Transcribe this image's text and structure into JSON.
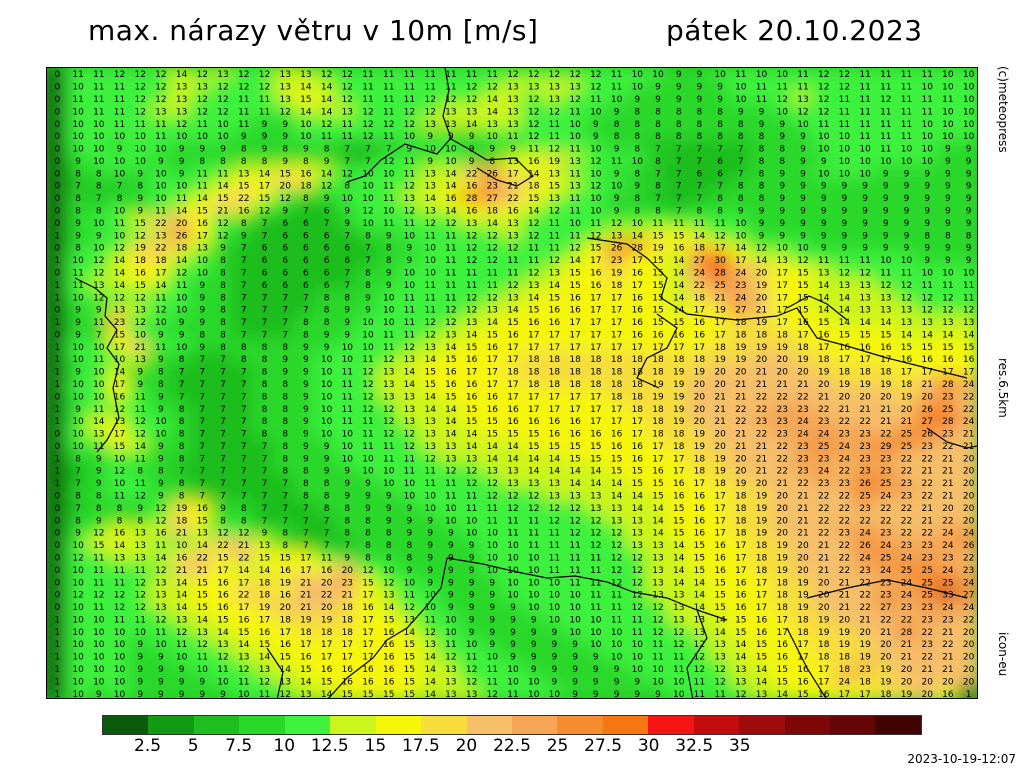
{
  "header": {
    "title": "max. nárazy větru v 10m [m/s]",
    "date": "pátek 20.10.2023"
  },
  "side_labels": {
    "copyright": "(c)meteopress",
    "resolution": "res.6.5km",
    "model": "icon-eu"
  },
  "timestamp": "2023-10-19-12:07",
  "legend": {
    "colors": [
      "#0c5a0c",
      "#139a13",
      "#1fbd1f",
      "#2ad82a",
      "#3ef23e",
      "#ccf51e",
      "#f6f60a",
      "#f7dd3d",
      "#f6bf6a",
      "#f4a655",
      "#f58c30",
      "#f67614",
      "#f51515",
      "#c10d0d",
      "#9d0b0b",
      "#7e0808",
      "#640606",
      "#420303"
    ],
    "labels": [
      "2.5",
      "5",
      "7.5",
      "10",
      "12.5",
      "15",
      "17.5",
      "20",
      "22.5",
      "25",
      "27.5",
      "30",
      "32.5",
      "35"
    ]
  },
  "map": {
    "rows": [
      "0 11 11 12 12 12 14 12 13 12 12 13 13 12 12 11 11 11 11 11 11 11 12 12 12 12 12 11 10 10 9 9 10 11 10 10 11 12 12 11 11 11 11 10 10",
      "0 10 11 11 12 12 13 13 12 12 12 13 14 14 12 11 11 11 11 11 12 12 13 13 13 13 12 11 10 9 9 9 9 10 11 11 11 12 12 11 11 11 10 10 10",
      "0 11 11 11 12 12 13 12 12 11 11 13 15 14 12 11 11 11 12 12 12 14 13 12 13 12 11 10 9 9 9 9 9 10 11 12 13 12 11 11 12 11 11 11 10",
      "0 10 11 11 12 13 13 12 12 11 11 12 14 14 13 12 11 12 12 13 13 14 13 12 12 11 10 9 8 8 8 8 8 9 9 10 12 12 11 11 11 11 11 10 10",
      "0 10 10 11 11 11 12 11 10 11 9 9 10 12 11 12 12 12 13 13 14 13 13 12 11 10 9 8 8 8 8 8 8 8 9 9 10 11 11 11 11 11 10 10 10",
      "0 10 10 10 10 11 10 10 10 9 9 9 10 11 11 12 11 10 9 9 9 10 11 12 11 10 9 8 8 8 8 8 8 8 8 9 9 10 10 11 11 11 10 10 10",
      "0 10 10 9 10 10 9 9 9 8 9 8 9 8 7 7 7 9 10 10 9 9 9 11 12 11 10 9 8 7 7 7 7 7 8 8 9 10 10 10 11 10 10 9 9",
      "0 9 10 10 10 9 9 8 8 8 8 9 8 9 7 7 12 11 9 10 9 8 13 16 19 13 12 11 10 8 7 7 6 7 8 8 9 9 10 10 10 10 10 9 9",
      "0 8 8 10 9 10 9 11 11 13 14 15 16 14 12 10 10 11 13 14 22 26 17 14 13 11 10 9 8 7 7 6 6 7 8 9 9 10 10 10 9 9 9 9 9",
      "0 7 8 7 8 10 10 11 14 15 17 20 18 12 8 10 11 12 13 14 16 23 21 18 15 13 12 10 9 8 7 7 7 8 8 9 9 9 9 9 9 9 9 9 9",
      "0 8 7 8 9 10 11 14 15 22 15 12 8 9 10 10 11 13 14 16 28 27 22 15 13 11 10 9 8 7 7 7 8 8 8 9 9 9 9 9 9 9 9 9 9",
      "0 8 8 10 9 11 14 15 21 16 12 9 7 6 9 12 10 12 13 14 16 18 16 14 12 11 10 9 8 8 7 8 8 9 9 9 9 9 9 9 9 9 9 9 9",
      "0 9 10 11 15 22 20 16 12 8 7 6 6 7 9 10 11 11 12 12 13 14 13 12 11 10 11 12 10 11 11 11 11 10 9 9 9 9 9 9 9 9 9 9 9",
      "1 9 9 10 12 13 26 17 12 9 7 6 6 6 7 8 9 10 11 11 12 12 13 12 11 11 12 13 14 15 15 14 12 10 9 9 9 9 9 9 9 9 8 8 8",
      "0 8 10 12 19 22 18 13 9 7 6 6 6 6 6 7 8 9 10 11 12 12 12 11 11 12 15 26 28 19 16 18 17 14 12 10 10 9 9 9 9 9 9 9 9",
      "1 10 12 14 18 18 14 10 8 7 6 6 6 6 6 7 8 9 10 11 12 12 11 11 12 14 17 23 17 15 14 27 30 17 14 13 12 11 11 11 10 10 9 9 9",
      "0 11 12 14 16 17 12 10 8 7 6 6 6 6 7 8 9 10 10 11 11 11 11 12 13 15 16 19 16 15 14 24 28 24 20 17 15 13 12 12 11 11 10 10 10",
      "1 11 13 14 15 14 11 9 8 7 6 6 6 6 7 8 9 10 11 11 11 11 12 13 14 15 16 18 17 15 14 22 25 23 19 17 15 14 13 13 12 12 11 11 11",
      "1 10 12 12 12 11 10 9 8 7 7 7 7 8 8 9 10 11 11 11 12 12 13 14 15 16 17 17 16 15 14 18 21 24 20 17 15 14 14 13 13 12 12 12 11",
      "0 9 9 13 13 12 10 9 8 7 7 7 7 8 9 9 10 11 11 12 12 13 14 15 16 16 17 17 16 15 14 17 19 27 21 17 15 14 14 13 13 13 12 12 12",
      "1 9 11 23 12 10 9 9 8 7 7 7 8 8 9 10 10 11 12 12 13 14 15 16 16 17 17 17 16 15 15 16 17 18 19 17 16 15 14 14 14 13 13 13 13",
      "0 9 7 15 10 9 9 8 8 7 7 7 8 9 9 10 11 11 12 13 14 15 16 17 17 17 17 17 16 16 16 16 17 18 18 18 17 16 15 15 15 14 14 14 14",
      "1 10 10 17 21 11 10 9 8 8 8 8 9 9 10 10 11 12 13 14 15 16 17 17 17 17 17 17 17 17 17 17 18 19 19 19 18 17 16 16 16 15 15 15 15",
      "1 10 11 10 13 9 8 7 7 8 8 9 9 10 10 11 12 13 14 15 16 17 17 18 18 18 18 18 18 18 18 18 19 19 20 20 19 18 17 17 17 16 16 16 16",
      "1 9 10 14 9 8 7 7 7 7 8 9 9 10 11 12 13 14 15 16 17 17 18 18 18 18 18 18 18 18 19 19 20 20 21 20 20 19 18 18 18 17 17 17 17",
      "1 10 10 17 9 8 7 7 7 7 8 8 9 10 11 12 13 14 15 16 16 17 17 18 18 18 18 18 18 19 19 20 20 21 21 21 21 20 19 19 19 18 21 28 24",
      "0 10 10 16 11 9 7 7 7 7 8 8 9 10 11 12 13 13 14 15 16 16 17 17 17 17 17 18 18 19 19 20 21 21 22 22 22 21 20 20 20 19 20 23 22",
      "1 9 11 12 11 9 8 7 7 7 8 8 9 10 11 12 12 13 14 14 15 16 16 17 17 17 17 17 18 18 19 20 21 22 22 23 23 22 21 21 21 20 26 25 22",
      "1 10 14 13 12 10 8 7 7 7 8 8 9 10 11 11 12 13 13 14 15 15 16 16 16 16 17 17 17 18 19 20 21 22 23 23 24 23 22 22 21 21 27 28 24",
      "0 10 13 17 12 10 8 7 7 7 8 8 9 10 10 11 12 12 13 14 14 15 15 15 16 16 16 16 17 18 18 19 20 21 22 23 24 24 23 23 22 25 26 23 21",
      "0 10 11 15 14 9 8 7 7 7 7 8 9 9 10 11 11 12 13 13 14 14 14 15 15 15 15 16 16 17 18 19 20 21 21 22 23 25 24 23 29 25 23 22 21",
      "1 8 9 10 11 9 8 7 7 7 7 8 9 9 10 10 11 11 12 13 13 14 14 14 14 15 15 15 16 17 17 18 19 20 21 22 23 23 24 23 23 22 22 21 20",
      "1 7 9 12 8 8 7 7 7 7 7 8 8 9 9 10 10 11 11 12 12 13 13 14 14 14 14 15 15 16 17 18 19 20 21 22 23 24 22 23 23 22 21 21 20",
      "1 7 9 10 11 9 8 7 7 7 7 7 8 8 9 9 10 10 11 11 12 12 13 13 13 14 14 14 15 15 16 17 18 19 20 21 22 23 23 26 25 23 22 21 20",
      "0 8 8 11 12 9 8 7 7 7 7 7 8 8 9 9 9 10 10 11 11 12 12 12 13 13 13 14 14 15 16 16 17 18 19 20 21 22 22 25 24 23 22 21 20",
      "0 7 8 8 9 12 19 16 9 8 7 7 7 8 8 9 9 9 10 10 11 11 12 12 12 12 13 13 14 14 15 16 17 18 19 20 21 22 22 23 22 22 21 20 20",
      "0 8 9 8 8 12 18 15 8 8 7 7 7 7 8 8 9 9 9 10 10 11 11 11 12 12 12 13 13 14 15 16 17 18 19 20 21 22 22 22 22 22 21 22 20",
      "0 9 12 16 13 16 21 13 12 12 9 8 7 7 8 8 8 9 9 9 10 10 11 11 11 12 12 12 13 14 15 16 17 18 19 20 21 22 23 24 23 22 22 24 24",
      "0 10 15 14 13 11 10 14 22 21 13 8 7 7 7 8 8 8 9 9 9 10 10 11 11 11 12 12 13 13 14 15 16 17 18 19 20 21 22 26 24 23 23 24 26",
      "0 12 11 13 13 14 16 22 15 22 15 15 17 11 9 8 8 8 9 9 9 10 10 10 11 11 11 12 12 13 14 15 16 17 18 19 20 21 22 24 25 24 23 23 22",
      "0 10 11 11 11 12 21 21 17 14 14 16 17 16 20 12 10 9 9 9 9 10 10 10 11 11 11 12 12 13 14 15 16 17 18 19 20 21 22 23 24 25 25 24 23",
      "0 10 11 11 12 13 14 15 16 17 18 19 21 20 23 15 12 10 9 9 9 9 10 10 10 11 11 12 12 13 14 14 15 16 17 18 19 20 21 22 23 24 25 25 24",
      "0 12 12 12 12 13 14 15 16 22 18 16 21 22 21 17 13 11 10 9 9 9 10 10 10 10 11 11 12 13 13 14 15 16 17 18 19 20 21 22 23 24 25 33 27",
      "0 10 11 12 12 13 14 15 16 17 19 20 21 20 18 16 14 12 10 9 9 9 9 10 10 10 11 11 12 12 13 14 15 16 17 18 19 20 21 22 27 23 23 24 24",
      "1 10 10 11 11 12 13 14 15 16 17 18 19 19 18 17 15 13 11 10 9 9 9 9 10 10 10 11 11 12 13 13 14 15 16 17 18 19 20 21 22 22 23 23 22",
      "1 10 10 10 10 11 12 13 14 15 16 17 18 18 18 17 16 14 12 10 9 9 9 9 9 10 10 10 11 12 12 13 14 15 16 17 18 19 19 20 21 28 22 21 20",
      "1 10 10 10 9 10 11 12 13 14 15 16 17 17 17 17 16 15 13 11 10 9 9 9 9 9 10 10 10 11 12 12 13 14 15 16 17 18 19 19 20 21 23 22 20",
      "1 10 10 10 9 9 10 11 12 13 14 15 16 17 17 17 16 15 14 12 11 10 9 9 9 9 9 10 10 11 11 12 13 14 15 16 17 18 18 19 20 21 22 21 20",
      "1 10 10 10 9 9 9 10 11 12 13 14 15 16 16 16 16 15 14 13 12 11 10 9 9 9 9 9 10 10 11 12 12 13 14 15 16 17 18 23 19 20 21 21 20",
      "1 10 10 10 9 9 9 9 10 11 12 13 14 15 16 16 16 15 14 13 12 11 10 10 9 9 9 9 9 10 10 11 12 13 14 15 16 17 24 18 19 20 20 20 20",
      "1 10 9 10 9 9 9 9 9 10 11 12 13 14 15 15 15 15 14 13 13 12 11 10 10 9 9 9 9 9 10 11 11 12 13 14 15 16 17 17 18 19 20 16 1"
    ],
    "coastline_color": "#000000"
  }
}
